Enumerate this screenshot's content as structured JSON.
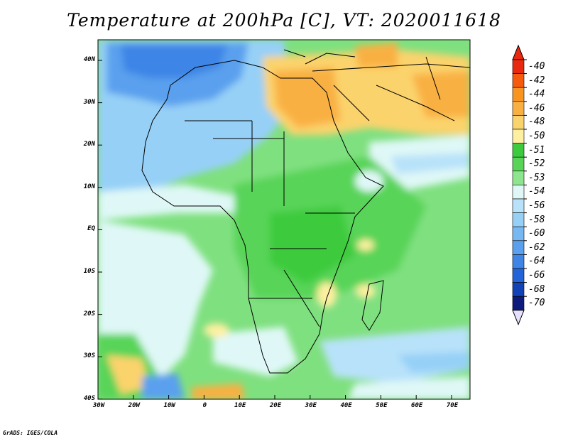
{
  "title": "Temperature at 200hPa [C], VT: 2020011618",
  "credit": "GrADS: IGES/COLA",
  "map": {
    "x_ticks": [
      "30W",
      "20W",
      "10W",
      "0",
      "10E",
      "20E",
      "30E",
      "40E",
      "50E",
      "60E",
      "70E"
    ],
    "y_ticks": [
      "40N",
      "30N",
      "20N",
      "10N",
      "EQ",
      "10S",
      "20S",
      "30S",
      "40S"
    ]
  },
  "colorbar": {
    "labels": [
      "-40",
      "-42",
      "-44",
      "-46",
      "-48",
      "-50",
      "-51",
      "-52",
      "-53",
      "-54",
      "-56",
      "-58",
      "-60",
      "-62",
      "-64",
      "-66",
      "-68",
      "-70"
    ],
    "colors": [
      "#e8290f",
      "#f65a0c",
      "#f89521",
      "#f9b043",
      "#fbd36c",
      "#fdf0a0",
      "#3dcb3d",
      "#58d458",
      "#8de68d",
      "#dff8f7",
      "#b8e2f9",
      "#96d0f7",
      "#77b8f3",
      "#5aa0ee",
      "#3e85e6",
      "#2365d8",
      "#1143b7",
      "#0d1b7d"
    ],
    "over_color": "#e8290f",
    "under_color": "#e5e0fb"
  }
}
